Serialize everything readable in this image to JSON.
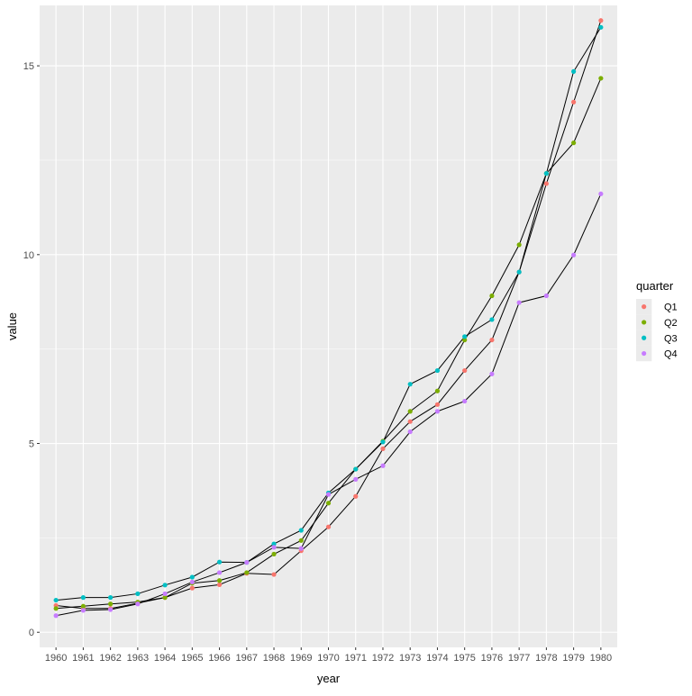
{
  "chart_data": {
    "type": "line",
    "title": "",
    "xlabel": "year",
    "ylabel": "value",
    "ylim": [
      -0.4,
      16.6
    ],
    "yticks": [
      0,
      5,
      10,
      15
    ],
    "grid": "on",
    "legend_title": "quarter",
    "legend_position": "right",
    "x": [
      1960,
      1961,
      1962,
      1963,
      1964,
      1965,
      1966,
      1967,
      1968,
      1969,
      1970,
      1971,
      1972,
      1973,
      1974,
      1975,
      1976,
      1977,
      1978,
      1979,
      1980
    ],
    "series": [
      {
        "name": "Q1",
        "color": "#F8766D",
        "values": [
          0.71,
          0.63,
          0.63,
          0.77,
          0.92,
          1.17,
          1.26,
          1.56,
          1.53,
          2.16,
          2.79,
          3.6,
          4.86,
          5.58,
          6.03,
          6.93,
          7.74,
          9.54,
          11.88,
          14.04,
          16.2
        ]
      },
      {
        "name": "Q2",
        "color": "#7CAE00",
        "values": [
          0.63,
          0.69,
          0.75,
          0.8,
          0.92,
          1.3,
          1.37,
          1.58,
          2.07,
          2.43,
          3.42,
          4.32,
          5.06,
          5.85,
          6.39,
          7.74,
          8.91,
          10.26,
          12.15,
          12.96,
          14.67
        ]
      },
      {
        "name": "Q3",
        "color": "#00BFC4",
        "values": [
          0.85,
          0.92,
          0.92,
          1.02,
          1.25,
          1.46,
          1.86,
          1.85,
          2.34,
          2.7,
          3.69,
          4.32,
          5.04,
          6.57,
          6.93,
          7.83,
          8.28,
          9.54,
          12.15,
          14.85,
          16.02
        ]
      },
      {
        "name": "Q4",
        "color": "#C77CFF",
        "values": [
          0.44,
          0.58,
          0.6,
          0.75,
          1.02,
          1.33,
          1.58,
          1.85,
          2.25,
          2.22,
          3.65,
          4.05,
          4.41,
          5.31,
          5.85,
          6.12,
          6.84,
          8.73,
          8.91,
          9.99,
          11.61
        ]
      }
    ]
  }
}
